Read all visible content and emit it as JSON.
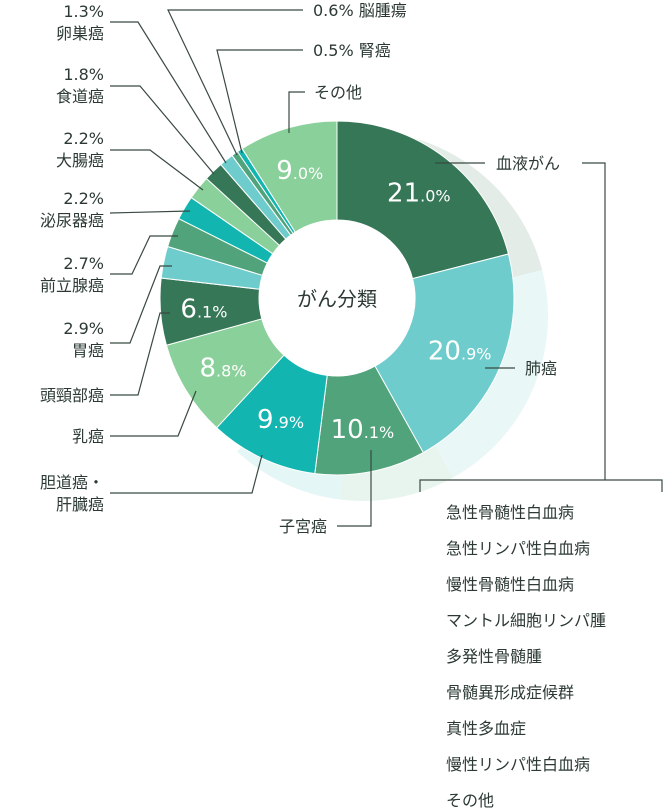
{
  "chart_data": {
    "type": "pie",
    "center_label": "がん分類",
    "slices": [
      {
        "name": "血液がん",
        "value": 21.0,
        "display": "21.0%",
        "color": "#357757"
      },
      {
        "name": "肺癌",
        "value": 20.9,
        "display": "20.9%",
        "color": "#6fcccc"
      },
      {
        "name": "子宮癌",
        "value": 10.1,
        "display": "10.1%",
        "color": "#50a37b"
      },
      {
        "name": "胆道癌・肝臓癌",
        "value": 9.9,
        "display": "9.9%",
        "color": "#13b5b0"
      },
      {
        "name": "乳癌",
        "value": 8.8,
        "display": "8.8%",
        "color": "#8ad09a"
      },
      {
        "name": "頭頸部癌",
        "value": 6.1,
        "display": "6.1%",
        "color": "#357757"
      },
      {
        "name": "胃癌",
        "value": 2.9,
        "display": "2.9%",
        "color": "#6fcccc"
      },
      {
        "name": "前立腺癌",
        "value": 2.7,
        "display": "2.7%",
        "color": "#50a37b"
      },
      {
        "name": "泌尿器癌",
        "value": 2.2,
        "display": "2.2%",
        "color": "#13b5b0"
      },
      {
        "name": "大腸癌",
        "value": 2.2,
        "display": "2.2%",
        "color": "#8ad09a"
      },
      {
        "name": "食道癌",
        "value": 1.8,
        "display": "1.8%",
        "color": "#357757"
      },
      {
        "name": "卵巣癌",
        "value": 1.3,
        "display": "1.3%",
        "color": "#6fcccc"
      },
      {
        "name": "脳腫瘍",
        "value": 0.6,
        "display": "0.6%",
        "color": "#50a37b"
      },
      {
        "name": "腎癌",
        "value": 0.5,
        "display": "0.5%",
        "color": "#13b5b0"
      },
      {
        "name": "その他",
        "value": 9.0,
        "display": "9.0%",
        "color": "#8ad09a"
      }
    ],
    "blood_cancer_subtypes": [
      "急性骨髄性白血病",
      "急性リンパ性白血病",
      "慢性骨髄性白血病",
      "マントル細胞リンパ腫",
      "多発性骨髄腫",
      "骨髄異形成症候群",
      "真性多血症",
      "慢性リンパ性白血病",
      "その他"
    ]
  }
}
